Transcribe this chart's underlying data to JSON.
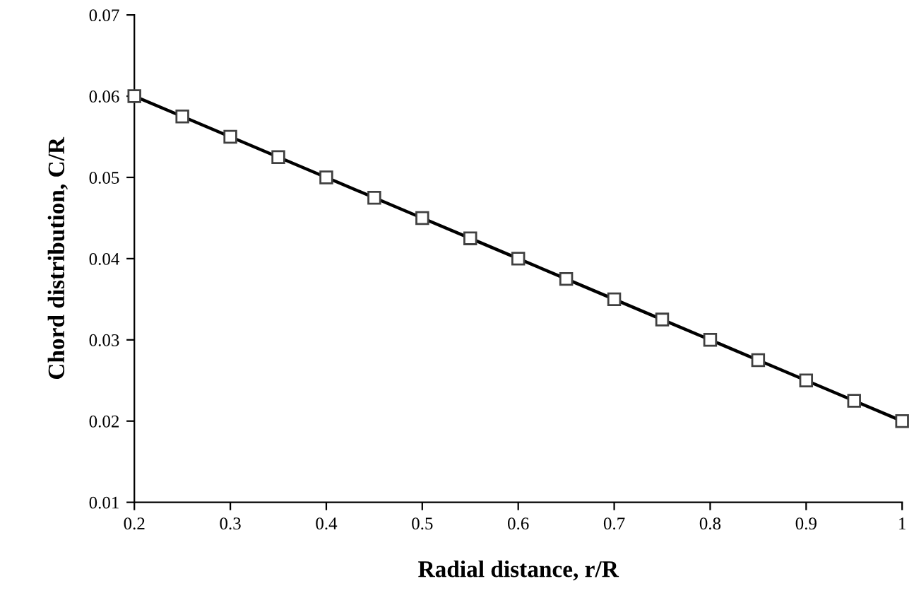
{
  "chart_data": {
    "type": "line",
    "xlabel": "Radial distance, r/R",
    "ylabel": "Chord distribution, C/R",
    "x": [
      0.2,
      0.25,
      0.3,
      0.35,
      0.4,
      0.45,
      0.5,
      0.55,
      0.6,
      0.65,
      0.7,
      0.75,
      0.8,
      0.85,
      0.9,
      0.95,
      1.0
    ],
    "series": [
      {
        "color": "#000000",
        "values": [
          0.06,
          0.0575,
          0.055,
          0.0525,
          0.05,
          0.0475,
          0.045,
          0.0425,
          0.04,
          0.0375,
          0.035,
          0.0325,
          0.03,
          0.0275,
          0.025,
          0.0225,
          0.02
        ]
      }
    ],
    "xlim": [
      0.2,
      1
    ],
    "xticks": [
      0.2,
      0.3,
      0.4,
      0.5,
      0.6,
      0.7,
      0.8,
      0.9,
      1
    ],
    "ylim": [
      0.01,
      0.07
    ],
    "yticks": [
      0.01,
      0.02,
      0.03,
      0.04,
      0.05,
      0.06,
      0.07
    ],
    "marker": "square",
    "line_style": "solid",
    "grid": false,
    "legend": false
  }
}
